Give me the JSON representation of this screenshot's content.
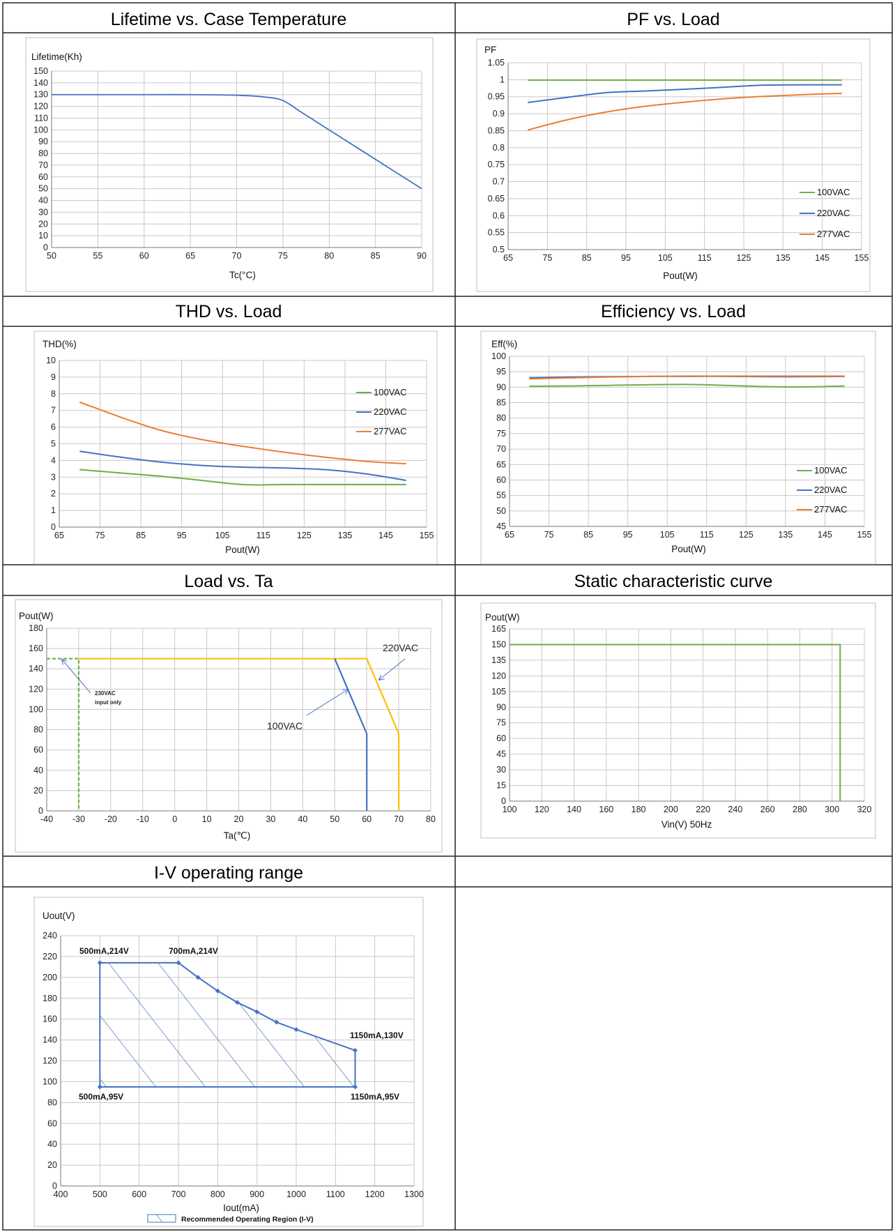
{
  "chart_data": [
    {
      "type": "line",
      "title": "Lifetime vs. Case Temperature",
      "ylabel": "Lifetime(Kh)",
      "xlabel": "Tc(°C)",
      "xlim": [
        50,
        90
      ],
      "ylim": [
        0,
        150
      ],
      "xticks": [
        50,
        55,
        60,
        65,
        70,
        75,
        80,
        85,
        90
      ],
      "yticks": [
        0,
        10,
        20,
        30,
        40,
        50,
        60,
        70,
        80,
        90,
        100,
        110,
        120,
        130,
        140,
        150
      ],
      "grid": true,
      "series": [
        {
          "color": "#4472c4",
          "x": [
            50,
            60,
            65,
            70,
            73,
            75,
            77,
            80,
            85,
            90
          ],
          "y": [
            130,
            130,
            130,
            129.5,
            128,
            125,
            115,
            100,
            75,
            50
          ]
        }
      ]
    },
    {
      "type": "line",
      "title": "PF vs. Load",
      "ylabel": "PF",
      "xlabel": "Pout(W)",
      "xlim": [
        65,
        155
      ],
      "ylim": [
        0.5,
        1.05
      ],
      "xticks": [
        65,
        75,
        85,
        95,
        105,
        115,
        125,
        135,
        145,
        155
      ],
      "yticks": [
        0.5,
        0.55,
        0.6,
        0.65,
        0.7,
        0.75,
        0.8,
        0.85,
        0.9,
        0.95,
        1,
        1.05
      ],
      "grid": true,
      "legend": "right",
      "series": [
        {
          "name": "100VAC",
          "color": "#70ad47",
          "x": [
            70,
            80,
            90,
            100,
            110,
            120,
            130,
            140,
            150
          ],
          "y": [
            0.999,
            0.999,
            0.999,
            0.999,
            0.999,
            0.999,
            0.999,
            0.999,
            0.999
          ]
        },
        {
          "name": "220VAC",
          "color": "#4472c4",
          "x": [
            70,
            80,
            90,
            100,
            110,
            120,
            130,
            140,
            150
          ],
          "y": [
            0.933,
            0.948,
            0.962,
            0.967,
            0.972,
            0.978,
            0.984,
            0.985,
            0.985
          ]
        },
        {
          "name": "277VAC",
          "color": "#ed7d31",
          "x": [
            70,
            80,
            90,
            100,
            110,
            120,
            130,
            140,
            150
          ],
          "y": [
            0.852,
            0.882,
            0.905,
            0.922,
            0.934,
            0.944,
            0.951,
            0.956,
            0.96
          ]
        }
      ]
    },
    {
      "type": "line",
      "title": "THD vs. Load",
      "ylabel": "THD(%)",
      "xlabel": "Pout(W)",
      "xlim": [
        65,
        155
      ],
      "ylim": [
        0,
        10
      ],
      "xticks": [
        65,
        75,
        85,
        95,
        105,
        115,
        125,
        135,
        145,
        155
      ],
      "yticks": [
        0,
        1,
        2,
        3,
        4,
        5,
        6,
        7,
        8,
        9,
        10
      ],
      "grid": true,
      "legend": "right",
      "series": [
        {
          "name": "100VAC",
          "color": "#70ad47",
          "x": [
            70,
            80,
            90,
            100,
            110,
            120,
            130,
            140,
            150
          ],
          "y": [
            3.45,
            3.25,
            3.05,
            2.8,
            2.55,
            2.55,
            2.55,
            2.55,
            2.55
          ]
        },
        {
          "name": "220VAC",
          "color": "#4472c4",
          "x": [
            70,
            80,
            90,
            100,
            110,
            120,
            130,
            140,
            150
          ],
          "y": [
            4.55,
            4.2,
            3.9,
            3.7,
            3.6,
            3.55,
            3.45,
            3.2,
            2.8
          ]
        },
        {
          "name": "277VAC",
          "color": "#ed7d31",
          "x": [
            70,
            80,
            90,
            100,
            110,
            120,
            130,
            140,
            150
          ],
          "y": [
            7.5,
            6.6,
            5.8,
            5.25,
            4.85,
            4.5,
            4.2,
            3.95,
            3.8
          ]
        }
      ]
    },
    {
      "type": "line",
      "title": "Efficiency vs. Load",
      "ylabel": "Eff(%)",
      "xlabel": "Pout(W)",
      "xlim": [
        65,
        155
      ],
      "ylim": [
        45,
        100
      ],
      "xticks": [
        65,
        75,
        85,
        95,
        105,
        115,
        125,
        135,
        145,
        155
      ],
      "yticks": [
        45,
        50,
        55,
        60,
        65,
        70,
        75,
        80,
        85,
        90,
        95,
        100
      ],
      "grid": true,
      "legend": "right",
      "series": [
        {
          "name": "100VAC",
          "color": "#70ad47",
          "x": [
            70,
            80,
            90,
            100,
            110,
            120,
            130,
            140,
            150
          ],
          "y": [
            90.3,
            90.4,
            90.6,
            90.8,
            90.9,
            90.6,
            90.2,
            90.1,
            90.4
          ]
        },
        {
          "name": "220VAC",
          "color": "#4472c4",
          "x": [
            70,
            80,
            90,
            100,
            110,
            120,
            130,
            140,
            150
          ],
          "y": [
            93.1,
            93.3,
            93.4,
            93.5,
            93.5,
            93.5,
            93.4,
            93.4,
            93.5
          ]
        },
        {
          "name": "277VAC",
          "color": "#ed7d31",
          "x": [
            70,
            80,
            90,
            100,
            110,
            120,
            130,
            140,
            150
          ],
          "y": [
            92.7,
            93,
            93.3,
            93.5,
            93.6,
            93.6,
            93.6,
            93.6,
            93.6
          ]
        }
      ]
    },
    {
      "type": "line",
      "title": "Load vs. Ta",
      "ylabel": "Pout(W)",
      "xlabel": "Ta(℃)",
      "xlim": [
        -40,
        80
      ],
      "ylim": [
        0,
        180
      ],
      "xticks": [
        -40,
        -30,
        -20,
        -10,
        0,
        10,
        20,
        30,
        40,
        50,
        60,
        70,
        80
      ],
      "yticks": [
        0,
        20,
        40,
        60,
        80,
        100,
        120,
        140,
        160,
        180
      ],
      "grid": true,
      "series": [
        {
          "key": "220",
          "color": "#ffc000",
          "x": [
            -30,
            60,
            70,
            70
          ],
          "y": [
            150,
            150,
            76,
            0
          ]
        },
        {
          "key": "100",
          "color": "#4472c4",
          "x": [
            50,
            60,
            60
          ],
          "y": [
            150,
            76,
            0
          ]
        },
        {
          "key": "230",
          "color": "#70ad47",
          "dashed": true,
          "x": [
            -40,
            -30,
            -30
          ],
          "y": [
            150,
            150,
            0
          ]
        }
      ],
      "annotations": {
        "label_220": "220VAC",
        "label_100": "100VAC",
        "label_230_line1": "230VAC",
        "label_230_line2": "input only"
      }
    },
    {
      "type": "line",
      "title": "Static characteristic curve",
      "ylabel": "Pout(W)",
      "xlabel": "Vin(V) 50Hz",
      "xlim": [
        100,
        320
      ],
      "ylim": [
        0,
        165
      ],
      "xticks": [
        100,
        120,
        140,
        160,
        180,
        200,
        220,
        240,
        260,
        280,
        300,
        320
      ],
      "yticks": [
        0,
        15,
        30,
        45,
        60,
        75,
        90,
        105,
        120,
        135,
        150,
        165
      ],
      "grid": true,
      "series": [
        {
          "color": "#70ad47",
          "x": [
            100,
            305,
            305
          ],
          "y": [
            150,
            150,
            0
          ]
        }
      ]
    },
    {
      "type": "area",
      "title": "I-V operating range",
      "ylabel": "Uout(V)",
      "xlabel": "Iout(mA)",
      "xlim": [
        400,
        1300
      ],
      "ylim": [
        0,
        240
      ],
      "xticks": [
        400,
        500,
        600,
        700,
        800,
        900,
        1000,
        1100,
        1200,
        1300
      ],
      "yticks": [
        0,
        20,
        40,
        60,
        80,
        100,
        120,
        140,
        160,
        180,
        200,
        220,
        240
      ],
      "grid": true,
      "series": [
        {
          "color": "#4472c4",
          "x": [
            500,
            700,
            750,
            800,
            850,
            900,
            950,
            1000,
            1150,
            1150,
            500,
            500
          ],
          "y": [
            214,
            214,
            200,
            187,
            176,
            167,
            157,
            150,
            130,
            95,
            95,
            214
          ]
        }
      ],
      "point_labels": [
        "500mA,214V",
        "700mA,214V",
        "1150mA,130V",
        "500mA,95V",
        "1150mA,95V"
      ],
      "legend_label": "Recommended Operating Region (I-V)"
    }
  ]
}
